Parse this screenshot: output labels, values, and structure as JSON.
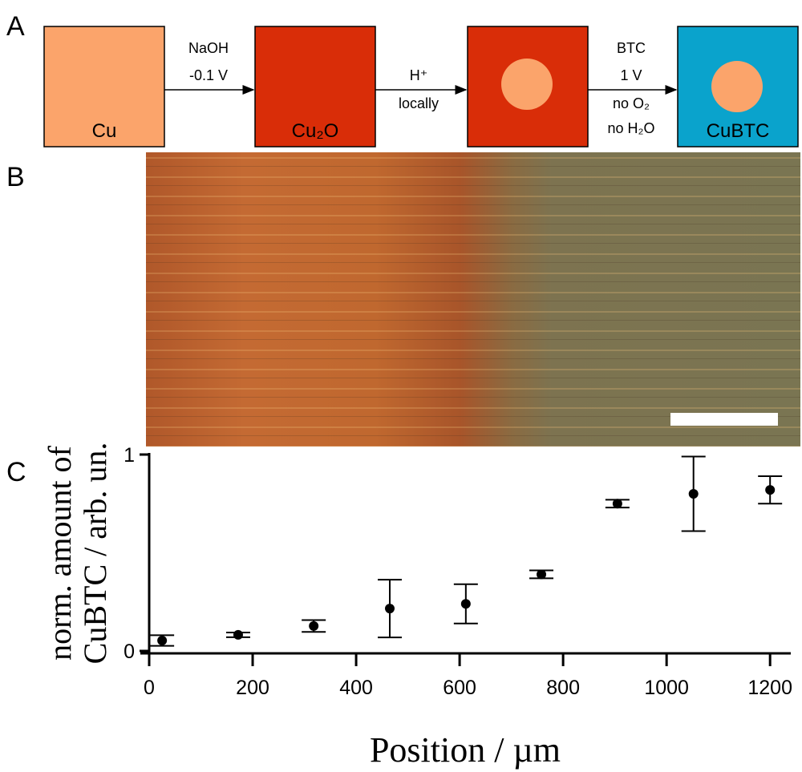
{
  "panel_labels": [
    "A",
    "B",
    "C"
  ],
  "scheme": {
    "boxes": [
      "Cu",
      "Cu₂O",
      "CuBTC"
    ],
    "arrows": [
      [
        "NaOH",
        "-0.1 V"
      ],
      [
        "H⁺",
        "locally"
      ],
      [
        "BTC",
        "1 V",
        "no O₂",
        "no H₂O"
      ]
    ]
  },
  "chart_data": {
    "type": "scatter",
    "x_label": "Position / µm",
    "y_label": [
      "norm. amount of",
      "CuBTC / arb. un."
    ],
    "x": [
      25,
      172,
      318,
      465,
      612,
      758,
      905,
      1052,
      1200
    ],
    "values": [
      0.053,
      0.082,
      0.127,
      0.216,
      0.24,
      0.39,
      0.75,
      0.8,
      0.82
    ],
    "errors": [
      0.027,
      0.012,
      0.03,
      0.147,
      0.1,
      0.02,
      0.02,
      0.19,
      0.07
    ],
    "color": "#000000",
    "xlim": [
      0,
      1240
    ],
    "ylim": [
      0,
      1
    ],
    "xticks": [
      0,
      200,
      400,
      600,
      800,
      1000,
      1200
    ],
    "yticks": [
      0,
      1
    ]
  }
}
